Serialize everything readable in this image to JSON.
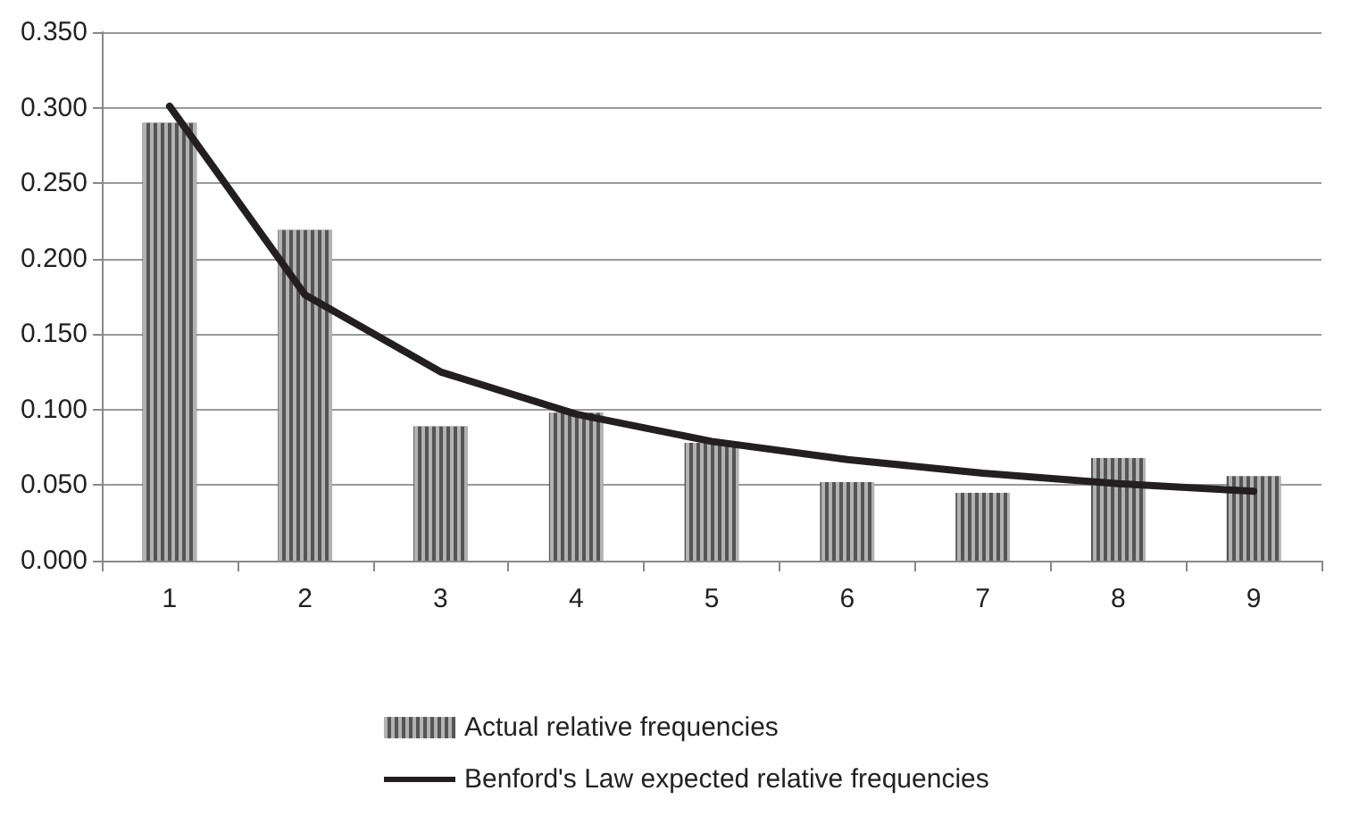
{
  "chart_data": {
    "type": "bar",
    "categories": [
      "1",
      "2",
      "3",
      "4",
      "5",
      "6",
      "7",
      "8",
      "9"
    ],
    "series": [
      {
        "name": "Actual relative frequencies",
        "color": "#555555",
        "values": [
          0.29,
          0.219,
          0.089,
          0.098,
          0.078,
          0.052,
          0.045,
          0.068,
          0.056
        ]
      },
      {
        "name": "Benford's Law expected relative frequencies",
        "type": "line",
        "color": "#231f20",
        "values": [
          0.301,
          0.176,
          0.125,
          0.097,
          0.079,
          0.067,
          0.058,
          0.051,
          0.046
        ]
      }
    ],
    "ylim": [
      0,
      0.35
    ],
    "yticks": [
      {
        "value": 0,
        "label": "0.000"
      },
      {
        "value": 0.05,
        "label": "0.050"
      },
      {
        "value": 0.1,
        "label": "0.100"
      },
      {
        "value": 0.15,
        "label": "0.150"
      },
      {
        "value": 0.2,
        "label": "0.200"
      },
      {
        "value": 0.25,
        "label": "0.250"
      },
      {
        "value": 0.3,
        "label": "0.300"
      },
      {
        "value": 0.35,
        "label": "0.350"
      }
    ],
    "grid": "y",
    "legend": "bottom",
    "marker": "none",
    "line_style": "solid"
  }
}
